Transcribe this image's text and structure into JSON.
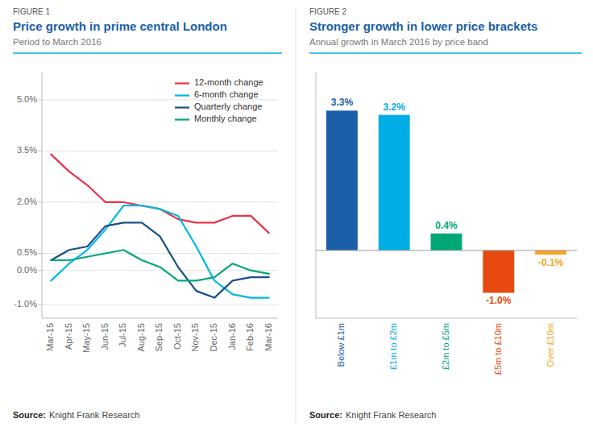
{
  "chart_data": [
    {
      "type": "line",
      "title": "Price growth in prime central London",
      "subtitle": "Period to March 2016",
      "annotations": [
        "FIGURE 1",
        "Source:",
        "Knight Frank Research"
      ],
      "categories": [
        "Mar-15",
        "Apr-15",
        "May-15",
        "Jun-15",
        "Jul-15",
        "Aug-15",
        "Sep-15",
        "Oct-15",
        "Nov-15",
        "Dec-15",
        "Jan-16",
        "Feb-16",
        "Mar-16"
      ],
      "series": [
        {
          "name": "12-month change",
          "color": "#e8334a",
          "values": [
            0.034,
            0.029,
            0.025,
            0.02,
            0.02,
            0.019,
            0.018,
            0.015,
            0.014,
            0.014,
            0.016,
            0.016,
            0.011
          ]
        },
        {
          "name": "6-month change",
          "color": "#00b8e0",
          "values": [
            -0.003,
            0.002,
            0.006,
            0.012,
            0.019,
            0.019,
            0.018,
            0.016,
            0.007,
            -0.003,
            -0.007,
            -0.008,
            -0.008
          ]
        },
        {
          "name": "Quarterly change",
          "color": "#1a4f8a",
          "values": [
            0.003,
            0.006,
            0.007,
            0.013,
            0.014,
            0.014,
            0.01,
            0.001,
            -0.006,
            -0.008,
            -0.003,
            -0.002,
            -0.002
          ]
        },
        {
          "name": "Monthly change",
          "color": "#00a878",
          "values": [
            0.003,
            0.003,
            0.004,
            0.005,
            0.006,
            0.003,
            0.001,
            -0.003,
            -0.003,
            -0.002,
            0.002,
            0.0,
            -0.001
          ]
        }
      ],
      "ylim": [
        -0.014,
        0.058
      ],
      "yticks": [
        {
          "value": -0.01,
          "label": "-1.0%"
        },
        {
          "value": 0.0,
          "label": "0.0%"
        },
        {
          "value": 0.005,
          "label": "0.5%"
        },
        {
          "value": 0.02,
          "label": "2.0%"
        },
        {
          "value": 0.035,
          "label": "3.5%"
        },
        {
          "value": 0.05,
          "label": "5.0%"
        }
      ],
      "grid": true,
      "legend": "upper right"
    },
    {
      "type": "bar",
      "title": "Stronger growth in lower price brackets",
      "subtitle": "Annual growth in March 2016 by price band",
      "annotations": [
        "FIGURE 2",
        "Source:",
        "Knight Frank Research"
      ],
      "categories": [
        "Below £1m",
        "£1m to £2m",
        "£2m to £5m",
        "£5m to £10m",
        "Over £10m"
      ],
      "values": [
        3.3,
        3.2,
        0.4,
        -1.0,
        -0.1
      ],
      "value_labels": [
        "3.3%",
        "3.2%",
        "0.4%",
        "-1.0%",
        "-0.1%"
      ],
      "data_labels": true,
      "colors": [
        "#1a5fa8",
        "#00aee5",
        "#00a878",
        "#e8490f",
        "#f5a623"
      ],
      "ylim": [
        -1.6,
        4.2
      ],
      "grid": false,
      "tick_labels": "x"
    }
  ]
}
